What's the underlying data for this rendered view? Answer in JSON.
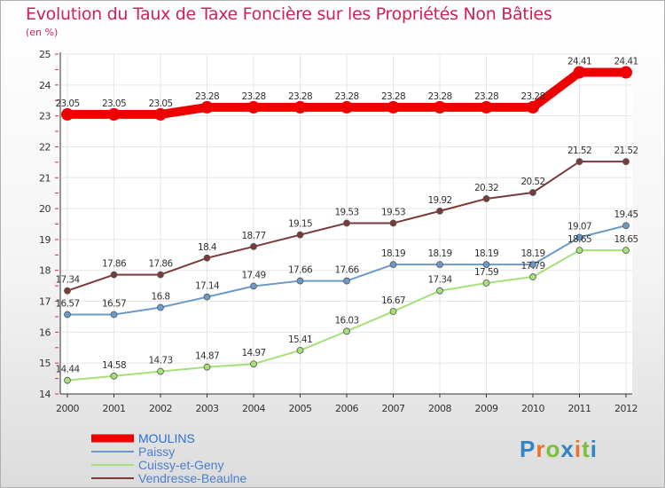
{
  "title": "Evolution du Taux de Taxe Foncière sur les Propriétés Non Bâties",
  "subtitle": "(en %)",
  "brand": "Proxiti",
  "chart_data": {
    "type": "line",
    "title": "Evolution du Taux de Taxe Foncière sur les Propriétés Non Bâties",
    "ylabel": "(en %)",
    "xlabel": "",
    "ylim": [
      14,
      25
    ],
    "yticks": [
      14,
      15,
      16,
      17,
      18,
      19,
      20,
      21,
      22,
      23,
      24,
      25
    ],
    "x": [
      "2000",
      "2001",
      "2002",
      "2003",
      "2004",
      "2005",
      "2006",
      "2007",
      "2008",
      "2009",
      "2010",
      "2011",
      "2012"
    ],
    "legend_position": "bottom-left",
    "series": [
      {
        "name": "MOULINS",
        "color": "#ee0000",
        "values": [
          23.05,
          23.05,
          23.05,
          23.28,
          23.28,
          23.28,
          23.28,
          23.28,
          23.28,
          23.28,
          23.28,
          24.41,
          24.41
        ]
      },
      {
        "name": "Paissy",
        "color": "#6c9ac8",
        "values": [
          16.57,
          16.57,
          16.8,
          17.14,
          17.49,
          17.66,
          17.66,
          18.19,
          18.19,
          18.19,
          18.19,
          19.07,
          19.45
        ]
      },
      {
        "name": "Cuissy-et-Geny",
        "color": "#a6e07a",
        "values": [
          14.44,
          14.58,
          14.73,
          14.87,
          14.97,
          15.41,
          16.03,
          16.67,
          17.34,
          17.59,
          17.79,
          18.65,
          18.65
        ]
      },
      {
        "name": "Vendresse-Beaulne",
        "color": "#7a3a3a",
        "values": [
          17.34,
          17.86,
          17.86,
          18.4,
          18.77,
          19.15,
          19.53,
          19.53,
          19.92,
          20.32,
          20.52,
          21.52,
          21.52
        ]
      }
    ]
  }
}
